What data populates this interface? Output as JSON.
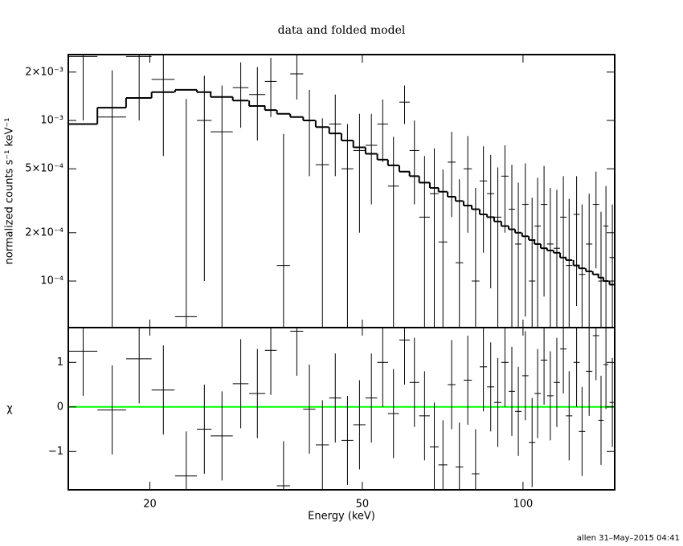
{
  "footer": "allen 31–May–2015 04:41",
  "chart_data": [
    {
      "type": "errorbar",
      "title": "data and folded model",
      "y_label": "normalized counts s⁻¹ keV⁻¹",
      "log_x": true,
      "log_y": true,
      "xlim": [
        14.07,
        148.5
      ],
      "ylim": [
        5.13e-05,
        0.00257
      ],
      "xticks": [
        20,
        50,
        100
      ],
      "yticks": [
        {
          "value": 0.0001,
          "label": "10⁻⁴"
        },
        {
          "value": 0.0002,
          "label": "2×10⁻⁴"
        },
        {
          "value": 0.0005,
          "label": "5×10⁻⁴"
        },
        {
          "value": 0.001,
          "label": "10⁻³"
        },
        {
          "value": 0.002,
          "label": "2×10⁻³"
        }
      ],
      "x": [
        15,
        17,
        19.1,
        21.2,
        23.4,
        25.3,
        27.3,
        29.6,
        31.8,
        33.7,
        35.6,
        37.7,
        39.8,
        42.1,
        44.5,
        46.9,
        49.4,
        52,
        54.6,
        57.2,
        60,
        62.6,
        65.4,
        68.2,
        70.8,
        73.5,
        76,
        78.8,
        81.5,
        84.3,
        87,
        89.7,
        92.5,
        95.3,
        98,
        101,
        104,
        106.5,
        109.5,
        112.5,
        115.7,
        119,
        122,
        126,
        129,
        133,
        137,
        140,
        143,
        147
      ],
      "xerr": [
        0.95,
        1.05,
        1.05,
        1.05,
        1.1,
        0.8,
        1.3,
        1.0,
        1.1,
        0.85,
        1.0,
        1.05,
        1.05,
        1.2,
        1.15,
        1.2,
        1.3,
        1.3,
        1.25,
        1.35,
        1.35,
        1.3,
        1.5,
        1.3,
        1.35,
        1.25,
        1.25,
        1.4,
        1.35,
        1.35,
        1.35,
        1.4,
        1.45,
        1.3,
        1.35,
        1.4,
        1.45,
        1.45,
        1.55,
        1.55,
        1.6,
        1.65,
        1.7,
        1.7,
        1.8,
        1.85,
        1.9,
        1.65,
        1.55,
        1.8
      ],
      "series": [
        {
          "color": "#000000",
          "values": [
            0.0025,
            0.00105,
            0.0025,
            0.0018,
            6e-05,
            0.001,
            0.00085,
            0.0016,
            0.00145,
            0.00175,
            0.000125,
            0.00195,
            0.001,
            0.00053,
            0.00095,
            0.0005,
            0.00065,
            0.0007,
            0.00095,
            0.00039,
            0.0013,
            0.00065,
            0.00025,
            0.00035,
            0.000175,
            0.00055,
            0.00013,
            0.0005,
            0.0001,
            0.00042,
            0.00035,
            0.00025,
            0.00045,
            0.00028,
            0.00017,
            0.0003,
            0.0001,
            0.00022,
            0.0003,
            0.00017,
            0.00016,
            0.00025,
            0.000125,
            0.00026,
            0.00011,
            0.00017,
            0.0003,
            0.0001,
            0.00022,
            0.00014
          ],
          "yerr": [
            0.0015,
            0.001,
            0.0015,
            0.0012,
            0.0013,
            0.0009,
            0.0008,
            0.0007,
            0.0007,
            0.0007,
            0.0007,
            0.0006,
            0.00055,
            0.0005,
            0.0005,
            0.00045,
            0.00045,
            0.0004,
            0.0004,
            0.0004,
            0.00035,
            0.00035,
            0.00035,
            0.00032,
            0.00032,
            0.0003,
            0.0003,
            0.0003,
            0.00028,
            0.00027,
            0.00026,
            0.00026,
            0.00025,
            0.00025,
            0.00024,
            0.00024,
            0.00023,
            0.00022,
            0.00022,
            0.00021,
            0.00021,
            0.0002,
            0.0002,
            0.00019,
            0.00019,
            0.00018,
            0.00018,
            0.00017,
            0.00017,
            0.00016
          ]
        },
        {
          "color": "#000000",
          "style": "step",
          "values": [
            0.00095,
            0.0012,
            0.00138,
            0.0015,
            0.00155,
            0.0015,
            0.0014,
            0.00133,
            0.00123,
            0.00116,
            0.0011,
            0.00105,
            0.001,
            0.00091,
            0.00083,
            0.00075,
            0.00068,
            0.00062,
            0.00057,
            0.000525,
            0.00048,
            0.00045,
            0.00041,
            0.00038,
            0.00036,
            0.000335,
            0.000315,
            0.000295,
            0.00028,
            0.00026,
            0.00025,
            0.000235,
            0.00022,
            0.00021,
            0.0002,
            0.00019,
            0.00018,
            0.00017,
            0.00016,
            0.000155,
            0.00015,
            0.00014,
            0.000135,
            0.000125,
            0.00012,
            0.000115,
            0.00011,
            0.000105,
            0.0001,
            9.5e-05
          ]
        }
      ]
    },
    {
      "type": "residual",
      "x_label": "Energy (keV)",
      "y_label": "χ",
      "log_x": true,
      "log_y": false,
      "xlim": [
        14.07,
        148.5
      ],
      "ylim": [
        -1.86,
        1.78
      ],
      "xticks": [
        20,
        50,
        100
      ],
      "yticks": [
        {
          "value": -1,
          "label": "−1"
        },
        0,
        1
      ],
      "x": [
        15,
        17,
        19.1,
        21.2,
        23.4,
        25.3,
        27.3,
        29.6,
        31.8,
        33.7,
        35.6,
        37.7,
        39.8,
        42.1,
        44.5,
        46.9,
        49.4,
        52,
        54.6,
        57.2,
        60,
        62.6,
        65.4,
        68.2,
        70.8,
        73.5,
        76,
        78.8,
        81.5,
        84.3,
        87,
        89.7,
        92.5,
        95.3,
        98,
        101,
        104,
        106.5,
        109.5,
        112.5,
        115.7,
        119,
        122,
        126,
        129,
        133,
        137,
        140,
        143,
        147
      ],
      "xerr": [
        0.95,
        1.05,
        1.05,
        1.05,
        1.1,
        0.8,
        1.3,
        1.0,
        1.1,
        0.85,
        1.0,
        1.05,
        1.05,
        1.2,
        1.15,
        1.2,
        1.3,
        1.3,
        1.25,
        1.35,
        1.35,
        1.3,
        1.5,
        1.3,
        1.35,
        1.25,
        1.25,
        1.4,
        1.35,
        1.35,
        1.35,
        1.4,
        1.45,
        1.3,
        1.35,
        1.4,
        1.45,
        1.45,
        1.55,
        1.55,
        1.6,
        1.65,
        1.7,
        1.7,
        1.8,
        1.85,
        1.9,
        1.65,
        1.55,
        1.8
      ],
      "series": [
        {
          "color": "#000000",
          "values": [
            1.25,
            -0.07,
            1.08,
            0.38,
            -1.55,
            -0.5,
            -0.65,
            0.52,
            0.3,
            1.27,
            -1.77,
            1.7,
            -0.05,
            -0.85,
            0.2,
            -0.75,
            -0.4,
            0.2,
            1.0,
            -0.15,
            1.5,
            0.55,
            -0.2,
            -0.9,
            -1.3,
            0.5,
            -1.35,
            0.6,
            -1.5,
            0.9,
            0.45,
            0.1,
            1.0,
            0.35,
            -0.1,
            0.7,
            -0.8,
            0.3,
            1.05,
            0.25,
            0.55,
            1.3,
            -0.2,
            1.0,
            -0.55,
            0.8,
            1.6,
            -0.3,
            0.95,
            0.1
          ],
          "yerr": [
            1,
            1,
            1,
            1,
            1,
            1,
            1,
            1,
            1,
            1,
            1,
            1,
            1,
            1,
            1,
            1,
            1,
            1,
            1,
            1,
            1,
            1,
            1,
            1,
            1,
            1,
            1,
            1,
            1,
            1,
            1,
            1,
            1,
            1,
            1,
            1,
            1,
            1,
            1,
            1,
            1,
            1,
            1,
            1,
            1,
            1,
            1,
            1,
            1,
            1
          ]
        }
      ],
      "reference_line": {
        "value": 0,
        "color": "#00ff00"
      }
    }
  ]
}
